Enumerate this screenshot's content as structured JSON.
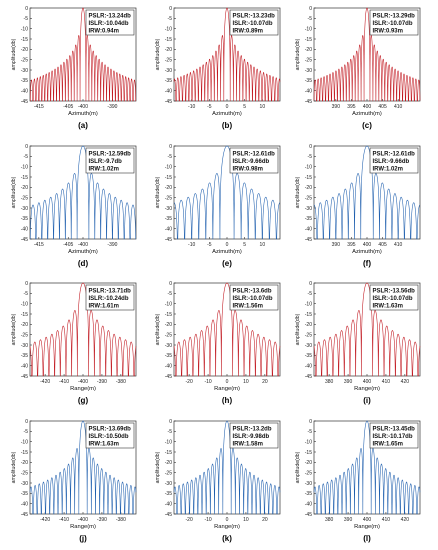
{
  "figure": {
    "panels_per_row": 3,
    "line_colors": {
      "red": "#c0141c",
      "blue": "#1f5fae"
    }
  },
  "chart_data": [
    {
      "id": "a",
      "caption": "(a)",
      "type": "line",
      "color": "red",
      "center": -400,
      "xlim": [
        -418,
        -382
      ],
      "xticks": [
        -415,
        -405,
        -400,
        -390
      ],
      "xticklabels": [
        "-415",
        "-405",
        "-400",
        "-390"
      ],
      "sidelobe_spacing": 1.0,
      "ylim": [
        -45,
        0
      ],
      "yticks": [
        0,
        -5,
        -10,
        -15,
        -20,
        -25,
        -30,
        -35,
        -40,
        -45
      ],
      "ylabel": "amplitude(db)",
      "xlabel": "Azimuth(m)",
      "annotation": [
        "PSLR:-13.24db",
        "ISLR:-10.04db",
        "IRW:0.94m"
      ]
    },
    {
      "id": "b",
      "caption": "(b)",
      "type": "line",
      "color": "red",
      "center": 0,
      "xlim": [
        -15,
        15
      ],
      "xticks": [
        -10,
        -5,
        0,
        5,
        10
      ],
      "xticklabels": [
        "-10",
        "-5",
        "0",
        "5",
        "10"
      ],
      "sidelobe_spacing": 0.9,
      "ylim": [
        -45,
        0
      ],
      "yticks": [
        0,
        -5,
        -10,
        -15,
        -20,
        -25,
        -30,
        -35,
        -40,
        -45
      ],
      "ylabel": "amplitude(db)",
      "xlabel": "Azimuth(m)",
      "annotation": [
        "PSLR:-13.23db",
        "ISLR:-10.07db",
        "IRW:0.89m"
      ]
    },
    {
      "id": "c",
      "caption": "(c)",
      "type": "line",
      "color": "red",
      "center": 400,
      "xlim": [
        383,
        417
      ],
      "xticks": [
        390,
        395,
        400,
        405,
        410
      ],
      "xticklabels": [
        "390",
        "395",
        "400",
        "405",
        "410"
      ],
      "sidelobe_spacing": 0.95,
      "ylim": [
        -45,
        0
      ],
      "yticks": [
        0,
        -5,
        -10,
        -15,
        -20,
        -25,
        -30,
        -35,
        -40,
        -45
      ],
      "ylabel": "amplitude(db)",
      "xlabel": "Azimuth(m)",
      "annotation": [
        "PSLR:-13.29db",
        "ISLR:-10.07db",
        "IRW:0.93m"
      ]
    },
    {
      "id": "d",
      "caption": "(d)",
      "type": "line",
      "color": "blue",
      "center": -400,
      "xlim": [
        -418,
        -382
      ],
      "xticks": [
        -415,
        -405,
        -400,
        -390
      ],
      "xticklabels": [
        "-415",
        "-405",
        "-400",
        "-390"
      ],
      "sidelobe_spacing": 2.0,
      "ylim": [
        -45,
        0
      ],
      "yticks": [
        0,
        -5,
        -10,
        -15,
        -20,
        -25,
        -30,
        -35,
        -40,
        -45
      ],
      "ylabel": "amplitude(db)",
      "xlabel": "Azimuth(m)",
      "annotation": [
        "PSLR:-12.59db",
        "ISLR:-9.7db",
        "IRW:1.02m"
      ]
    },
    {
      "id": "e",
      "caption": "(e)",
      "type": "line",
      "color": "blue",
      "center": 0,
      "xlim": [
        -15,
        15
      ],
      "xticks": [
        -10,
        -5,
        0,
        5,
        10
      ],
      "xticklabels": [
        "-10",
        "-5",
        "0",
        "5",
        "10"
      ],
      "sidelobe_spacing": 2.0,
      "ylim": [
        -45,
        0
      ],
      "yticks": [
        0,
        -5,
        -10,
        -15,
        -20,
        -25,
        -30,
        -35,
        -40,
        -45
      ],
      "ylabel": "amplitude(db)",
      "xlabel": "Azimuth(m)",
      "annotation": [
        "PSLR:-12.61db",
        "ISLR:-9.66db",
        "IRW:0.98m"
      ]
    },
    {
      "id": "f",
      "caption": "(f)",
      "type": "line",
      "color": "blue",
      "center": 400,
      "xlim": [
        383,
        417
      ],
      "xticks": [
        390,
        395,
        400,
        405,
        410
      ],
      "xticklabels": [
        "390",
        "395",
        "400",
        "405",
        "410"
      ],
      "sidelobe_spacing": 2.0,
      "ylim": [
        -45,
        0
      ],
      "yticks": [
        0,
        -5,
        -10,
        -15,
        -20,
        -25,
        -30,
        -35,
        -40,
        -45
      ],
      "ylabel": "amplitude(db)",
      "xlabel": "Azimuth(m)",
      "annotation": [
        "PSLR:-12.61db",
        "ISLR:-9.66db",
        "IRW:1.02m"
      ]
    },
    {
      "id": "g",
      "caption": "(g)",
      "type": "line",
      "color": "red",
      "center": -400,
      "xlim": [
        -428,
        -372
      ],
      "xticks": [
        -420,
        -410,
        -400,
        -390,
        -380
      ],
      "xticklabels": [
        "-420",
        "-410",
        "-400",
        "-390",
        "-380"
      ],
      "sidelobe_spacing": 3.0,
      "ylim": [
        -45,
        0
      ],
      "yticks": [
        0,
        -5,
        -10,
        -15,
        -20,
        -25,
        -30,
        -35,
        -40,
        -45
      ],
      "ylabel": "amplitude(db)",
      "xlabel": "Range(m)",
      "annotation": [
        "PSLR:-13.71db",
        "ISLR:-10.24db",
        "IRW:1.61m"
      ]
    },
    {
      "id": "h",
      "caption": "(h)",
      "type": "line",
      "color": "red",
      "center": 0,
      "xlim": [
        -28,
        28
      ],
      "xticks": [
        -20,
        -10,
        0,
        10,
        20
      ],
      "xticklabels": [
        "-20",
        "-10",
        "0",
        "10",
        "20"
      ],
      "sidelobe_spacing": 3.0,
      "ylim": [
        -45,
        0
      ],
      "yticks": [
        0,
        -5,
        -10,
        -15,
        -20,
        -25,
        -30,
        -35,
        -40,
        -45
      ],
      "ylabel": "amplitude(db)",
      "xlabel": "Range(m)",
      "annotation": [
        "PSLR:-13.6db",
        "ISLR:-10.07db",
        "IRW:1.56m"
      ]
    },
    {
      "id": "i",
      "caption": "(i)",
      "type": "line",
      "color": "red",
      "center": 400,
      "xlim": [
        372,
        428
      ],
      "xticks": [
        380,
        390,
        400,
        410,
        420
      ],
      "xticklabels": [
        "380",
        "390",
        "400",
        "410",
        "420"
      ],
      "sidelobe_spacing": 3.0,
      "ylim": [
        -45,
        0
      ],
      "yticks": [
        0,
        -5,
        -10,
        -15,
        -20,
        -25,
        -30,
        -35,
        -40,
        -45
      ],
      "ylabel": "amplitude(db)",
      "xlabel": "Range(m)",
      "annotation": [
        "PSLR:-13.56db",
        "ISLR:-10.07db",
        "IRW:1.63m"
      ]
    },
    {
      "id": "j",
      "caption": "(j)",
      "type": "line",
      "color": "blue",
      "center": -400,
      "xlim": [
        -428,
        -372
      ],
      "xticks": [
        -420,
        -410,
        -400,
        -390,
        -380
      ],
      "xticklabels": [
        "-420",
        "-410",
        "-400",
        "-390",
        "-380"
      ],
      "sidelobe_spacing": 2.2,
      "ylim": [
        -45,
        0
      ],
      "yticks": [
        0,
        -5,
        -10,
        -15,
        -20,
        -25,
        -30,
        -35,
        -40,
        -45
      ],
      "ylabel": "amplitude(db)",
      "xlabel": "Range(m)",
      "annotation": [
        "PSLR:-13.69db",
        "ISLR:-10.50db",
        "IRW:1.63m"
      ]
    },
    {
      "id": "k",
      "caption": "(k)",
      "type": "line",
      "color": "blue",
      "center": 0,
      "xlim": [
        -28,
        28
      ],
      "xticks": [
        -20,
        -10,
        0,
        10,
        20
      ],
      "xticklabels": [
        "-20",
        "-10",
        "0",
        "10",
        "20"
      ],
      "sidelobe_spacing": 2.2,
      "ylim": [
        -45,
        0
      ],
      "yticks": [
        0,
        -5,
        -10,
        -15,
        -20,
        -25,
        -30,
        -35,
        -40,
        -45
      ],
      "ylabel": "amplitude(db)",
      "xlabel": "Range(m)",
      "annotation": [
        "PSLR:-13.2db",
        "ISLR:-9.98db",
        "IRW:1.58m"
      ]
    },
    {
      "id": "l",
      "caption": "(l)",
      "type": "line",
      "color": "blue",
      "center": 400,
      "xlim": [
        372,
        428
      ],
      "xticks": [
        380,
        390,
        400,
        410,
        420
      ],
      "xticklabels": [
        "380",
        "390",
        "400",
        "410",
        "420"
      ],
      "sidelobe_spacing": 2.2,
      "ylim": [
        -45,
        0
      ],
      "yticks": [
        0,
        -5,
        -10,
        -15,
        -20,
        -25,
        -30,
        -35,
        -40,
        -45
      ],
      "ylabel": "amplitude(db)",
      "xlabel": "Range(m)",
      "annotation": [
        "PSLR:-13.45db",
        "ISLR:-10.17db",
        "IRW:1.65m"
      ]
    }
  ]
}
